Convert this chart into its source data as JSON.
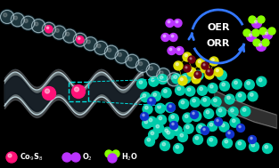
{
  "bg_color": "#000000",
  "oer_label": "OER",
  "orr_label": "ORR",
  "figsize": [
    3.13,
    1.89
  ],
  "dpi": 100,
  "cyan_color": "#00dddd",
  "teal_color": "#00ccaa",
  "yellow_color": "#dddd00",
  "blue_color": "#1133cc",
  "purple_color": "#bb33ff",
  "green_color": "#88ff00",
  "pink_color": "#ff1177",
  "arc_color": "#3377ff",
  "tube_light": "#b0c8d0",
  "tube_dark": "#607880",
  "bead_outer": "#c0d8e0",
  "bead_inner": "#203840",
  "co9s8_legend": "Co$_9$S$_8$",
  "o2_legend": "O$_2$",
  "h2o_legend": "H$_2$O"
}
